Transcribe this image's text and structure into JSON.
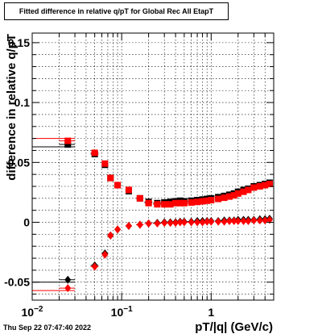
{
  "canvas": {
    "title": "Fitted difference in relative q/pT for Global Rec All EtapT",
    "timestamp": "Thu Sep 22 07:47:40 2022"
  },
  "chart_data": {
    "type": "scatter",
    "title": "Fitted difference in relative q/pT for Global Rec All EtapT",
    "xlabel": "pT/|q| (GeV/c)",
    "ylabel": "difference in relative q/pT",
    "x_scale": "log",
    "xlim": [
      0.01,
      5.0
    ],
    "ylim": [
      -0.065,
      0.158
    ],
    "x_ticks": [
      {
        "value": 0.01,
        "label": "10^-2"
      },
      {
        "value": 0.1,
        "label": "10^-1"
      },
      {
        "value": 1,
        "label": "1"
      }
    ],
    "y_ticks": [
      {
        "value": -0.05,
        "label": "-0.05"
      },
      {
        "value": 0,
        "label": "0"
      },
      {
        "value": 0.05,
        "label": "0.05"
      },
      {
        "value": 0.1,
        "label": "0.1"
      },
      {
        "value": 0.15,
        "label": "0.15"
      }
    ],
    "grid": true,
    "legend": "none",
    "series": [
      {
        "color": "#000000",
        "marker": "square",
        "x": [
          0.025,
          0.05,
          0.065,
          0.075,
          0.09,
          0.12,
          0.16,
          0.2,
          0.25,
          0.3,
          0.35,
          0.4,
          0.45,
          0.5,
          0.6,
          0.7,
          0.8,
          0.9,
          1.0,
          1.2,
          1.4,
          1.6,
          1.8,
          2.0,
          2.3,
          2.6,
          3.0,
          3.5,
          4.0,
          4.5
        ],
        "y": [
          0.065,
          0.057,
          0.048,
          0.037,
          0.031,
          0.026,
          0.02,
          0.017,
          0.016,
          0.0165,
          0.017,
          0.0175,
          0.018,
          0.0175,
          0.018,
          0.0185,
          0.019,
          0.0195,
          0.02,
          0.021,
          0.022,
          0.023,
          0.024,
          0.0255,
          0.027,
          0.028,
          0.03,
          0.031,
          0.032,
          0.033
        ],
        "xerr": [
          0.005,
          0.005,
          0.004,
          0.004,
          0.005,
          0.01,
          0.015,
          0.02,
          0.025,
          0.025,
          0.025,
          0.025,
          0.025,
          0.05,
          0.05,
          0.05,
          0.05,
          0.05,
          0.05,
          0.1,
          0.1,
          0.1,
          0.1,
          0.1,
          0.15,
          0.15,
          0.2,
          0.25,
          0.25,
          0.25
        ]
      },
      {
        "color": "#ff0000",
        "marker": "square",
        "x": [
          0.025,
          0.05,
          0.065,
          0.075,
          0.09,
          0.12,
          0.16,
          0.2,
          0.25,
          0.3,
          0.35,
          0.4,
          0.45,
          0.5,
          0.6,
          0.7,
          0.8,
          0.9,
          1.0,
          1.2,
          1.4,
          1.6,
          1.8,
          2.0,
          2.3,
          2.6,
          3.0,
          3.5,
          4.0,
          4.5
        ],
        "y": [
          0.068,
          0.058,
          0.049,
          0.037,
          0.031,
          0.027,
          0.02,
          0.016,
          0.015,
          0.015,
          0.015,
          0.016,
          0.016,
          0.016,
          0.0165,
          0.017,
          0.0175,
          0.018,
          0.0185,
          0.0195,
          0.0205,
          0.0215,
          0.0225,
          0.024,
          0.0255,
          0.027,
          0.029,
          0.03,
          0.031,
          0.032
        ],
        "xerr": [
          0.005,
          0.005,
          0.004,
          0.004,
          0.005,
          0.01,
          0.015,
          0.02,
          0.025,
          0.025,
          0.025,
          0.025,
          0.025,
          0.05,
          0.05,
          0.05,
          0.05,
          0.05,
          0.05,
          0.1,
          0.1,
          0.1,
          0.1,
          0.1,
          0.15,
          0.15,
          0.2,
          0.25,
          0.25,
          0.25
        ]
      },
      {
        "color": "#000000",
        "marker": "diamond",
        "x": [
          0.025,
          0.05,
          0.065,
          0.075,
          0.09,
          0.12,
          0.16,
          0.2,
          0.25,
          0.3,
          0.35,
          0.4,
          0.45,
          0.5,
          0.6,
          0.7,
          0.8,
          0.9,
          1.0,
          1.2,
          1.4,
          1.6,
          1.8,
          2.0,
          2.3,
          2.6,
          3.0,
          3.5,
          4.0,
          4.5
        ],
        "y": [
          -0.048,
          -0.036,
          -0.026,
          -0.011,
          -0.006,
          -0.003,
          -0.002,
          -0.001,
          -0.0005,
          0.0,
          0.0,
          0.0,
          0.0005,
          0.0005,
          0.0005,
          0.001,
          0.001,
          0.001,
          0.001,
          0.001,
          0.0015,
          0.0015,
          0.0015,
          0.002,
          0.002,
          0.002,
          0.002,
          0.0025,
          0.0025,
          0.003
        ],
        "xerr": [
          0.005,
          0.005,
          0.004,
          0.004,
          0.005,
          0.01,
          0.015,
          0.02,
          0.025,
          0.025,
          0.025,
          0.025,
          0.025,
          0.05,
          0.05,
          0.05,
          0.05,
          0.05,
          0.05,
          0.1,
          0.1,
          0.1,
          0.1,
          0.1,
          0.15,
          0.15,
          0.2,
          0.25,
          0.25,
          0.25
        ]
      },
      {
        "color": "#ff0000",
        "marker": "diamond",
        "x": [
          0.025,
          0.05,
          0.065,
          0.075,
          0.09,
          0.12,
          0.16,
          0.2,
          0.25,
          0.3,
          0.35,
          0.4,
          0.45,
          0.5,
          0.6,
          0.7,
          0.8,
          0.9,
          1.0,
          1.2,
          1.4,
          1.6,
          1.8,
          2.0,
          2.3,
          2.6,
          3.0,
          3.5,
          4.0,
          4.5
        ],
        "y": [
          -0.055,
          -0.037,
          -0.027,
          -0.011,
          -0.006,
          -0.003,
          -0.002,
          -0.001,
          -0.001,
          -0.0005,
          -0.0005,
          -0.0005,
          0.0,
          0.0,
          0.0,
          0.0,
          0.0,
          0.0005,
          0.0005,
          0.0005,
          0.0005,
          0.001,
          0.001,
          0.001,
          0.001,
          0.001,
          0.0015,
          0.0015,
          0.0015,
          0.002
        ],
        "xerr": [
          0.005,
          0.005,
          0.004,
          0.004,
          0.005,
          0.01,
          0.015,
          0.02,
          0.025,
          0.025,
          0.025,
          0.025,
          0.025,
          0.05,
          0.05,
          0.05,
          0.05,
          0.05,
          0.05,
          0.1,
          0.1,
          0.1,
          0.1,
          0.1,
          0.15,
          0.15,
          0.2,
          0.25,
          0.25,
          0.25
        ]
      }
    ],
    "band_lines": [
      {
        "color": "#000000",
        "x1": 0.01,
        "x2": 0.03,
        "y": 0.063
      },
      {
        "color": "#ff0000",
        "x1": 0.01,
        "x2": 0.03,
        "y": 0.07
      },
      {
        "color": "#000000",
        "x1": 0.01,
        "x2": 0.03,
        "y": -0.05
      },
      {
        "color": "#ff0000",
        "x1": 0.01,
        "x2": 0.03,
        "y": -0.057
      }
    ]
  }
}
